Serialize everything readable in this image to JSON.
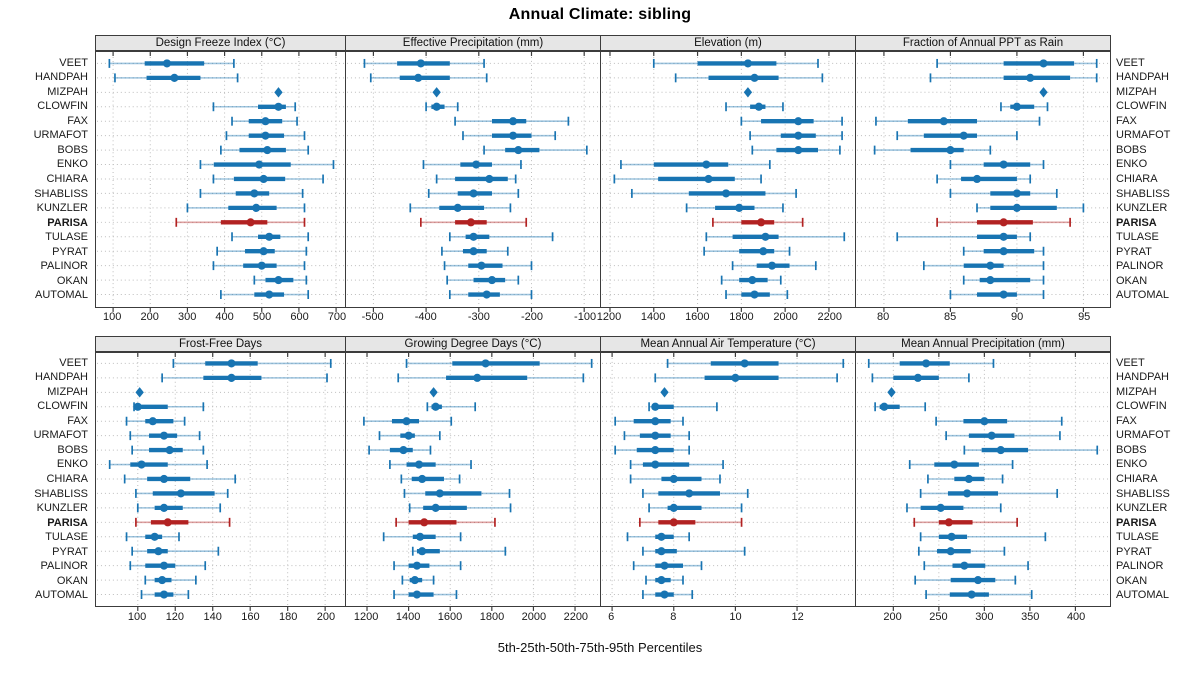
{
  "chart_data": {
    "type": "dotplot-percentile-errorbars",
    "title": "Annual Climate: sibling",
    "caption": "5th-25th-50th-75th-95th Percentiles",
    "legend_position": "none",
    "grid": "dotted",
    "sites": [
      "VEET",
      "HANDPAH",
      "MIZPAH",
      "CLOWFIN",
      "FAX",
      "URMAFOT",
      "BOBS",
      "ENKO",
      "CHIARA",
      "SHABLISS",
      "KUNZLER",
      "PARISA",
      "TULASE",
      "PYRAT",
      "PALINOR",
      "OKAN",
      "AUTOMAL"
    ],
    "highlight_site": "PARISA",
    "single_value_site": "MIZPAH",
    "percentile_order": [
      "p5",
      "p25",
      "p50",
      "p75",
      "p95"
    ],
    "colors": {
      "series_blue": "#1874B2",
      "highlight_red": "#B22222",
      "grid_gray": "#BDBDBD",
      "strip_bg": "#E6E6E6",
      "panel_border": "#3C3C3C",
      "text": "#1A1A1A"
    },
    "panels": [
      {
        "id": "design-freeze-index",
        "title": "Design Freeze Index (°C)",
        "row": 0,
        "col": 0,
        "xlim": [
          54,
          724
        ],
        "ticks": [
          100,
          200,
          300,
          400,
          500,
          600,
          700
        ],
        "values": {
          "VEET": [
            90,
            185,
            245,
            345,
            425
          ],
          "HANDPAH": [
            105,
            190,
            265,
            335,
            435
          ],
          "MIZPAH": [
            545
          ],
          "CLOWFIN": [
            370,
            490,
            545,
            565,
            590
          ],
          "FAX": [
            420,
            465,
            510,
            555,
            595
          ],
          "URMAFOT": [
            405,
            465,
            510,
            560,
            615
          ],
          "BOBS": [
            390,
            440,
            515,
            565,
            625
          ],
          "ENKO": [
            335,
            371,
            493,
            578,
            693
          ],
          "CHIARA": [
            370,
            425,
            505,
            563,
            665
          ],
          "SHABLISS": [
            335,
            430,
            480,
            520,
            610
          ],
          "KUNZLER": [
            300,
            410,
            485,
            540,
            615
          ],
          "PARISA": [
            270,
            390,
            470,
            515,
            615
          ],
          "TULASE": [
            420,
            490,
            520,
            550,
            625
          ],
          "PYRAT": [
            380,
            455,
            505,
            535,
            620
          ],
          "PALINOR": [
            370,
            450,
            500,
            540,
            615
          ],
          "OKAN": [
            480,
            510,
            545,
            585,
            620
          ],
          "AUTOMAL": [
            390,
            480,
            520,
            560,
            625
          ]
        }
      },
      {
        "id": "effective-precipitation",
        "title": "Effective Precipitation (mm)",
        "row": 0,
        "col": 1,
        "xlim": [
          -552,
          -70
        ],
        "ticks": [
          -500,
          -400,
          -300,
          -200,
          -100
        ],
        "values": {
          "VEET": [
            -517,
            -455,
            -410,
            -355,
            -290
          ],
          "HANDPAH": [
            -505,
            -450,
            -415,
            -355,
            -285
          ],
          "MIZPAH": [
            -380
          ],
          "CLOWFIN": [
            -400,
            -390,
            -380,
            -365,
            -340
          ],
          "FAX": [
            -345,
            -275,
            -235,
            -210,
            -130
          ],
          "URMAFOT": [
            -330,
            -275,
            -235,
            -200,
            -155
          ],
          "BOBS": [
            -290,
            -250,
            -225,
            -185,
            -95
          ],
          "ENKO": [
            -405,
            -335,
            -305,
            -275,
            -220
          ],
          "CHIARA": [
            -380,
            -345,
            -280,
            -245,
            -230
          ],
          "SHABLISS": [
            -395,
            -340,
            -310,
            -275,
            -225
          ],
          "KUNZLER": [
            -430,
            -375,
            -340,
            -290,
            -240
          ],
          "PARISA": [
            -410,
            -345,
            -315,
            -285,
            -210
          ],
          "TULASE": [
            -355,
            -325,
            -310,
            -280,
            -160
          ],
          "PYRAT": [
            -370,
            -330,
            -310,
            -285,
            -245
          ],
          "PALINOR": [
            -365,
            -320,
            -295,
            -255,
            -200
          ],
          "OKAN": [
            -360,
            -310,
            -275,
            -250,
            -225
          ],
          "AUTOMAL": [
            -355,
            -320,
            -285,
            -260,
            -200
          ]
        }
      },
      {
        "id": "elevation",
        "title": "Elevation (m)",
        "row": 0,
        "col": 2,
        "xlim": [
          1159,
          2319
        ],
        "ticks": [
          1200,
          1400,
          1600,
          1800,
          2000,
          2200
        ],
        "values": {
          "VEET": [
            1400,
            1600,
            1830,
            1960,
            2150
          ],
          "HANDPAH": [
            1500,
            1650,
            1860,
            1970,
            2170
          ],
          "MIZPAH": [
            1830
          ],
          "CLOWFIN": [
            1730,
            1840,
            1880,
            1910,
            1990
          ],
          "FAX": [
            1800,
            1890,
            2060,
            2130,
            2260
          ],
          "URMAFOT": [
            1840,
            1980,
            2060,
            2140,
            2260
          ],
          "BOBS": [
            1850,
            1960,
            2060,
            2150,
            2250
          ],
          "ENKO": [
            1250,
            1400,
            1640,
            1740,
            1930
          ],
          "CHIARA": [
            1220,
            1420,
            1650,
            1770,
            1890
          ],
          "SHABLISS": [
            1300,
            1560,
            1730,
            1910,
            2050
          ],
          "KUNZLER": [
            1550,
            1680,
            1790,
            1860,
            1990
          ],
          "PARISA": [
            1670,
            1800,
            1890,
            1950,
            2080
          ],
          "TULASE": [
            1640,
            1760,
            1910,
            1970,
            2270
          ],
          "PYRAT": [
            1630,
            1790,
            1900,
            1950,
            2020
          ],
          "PALINOR": [
            1760,
            1870,
            1940,
            2020,
            2140
          ],
          "OKAN": [
            1710,
            1790,
            1850,
            1920,
            1980
          ],
          "AUTOMAL": [
            1730,
            1800,
            1860,
            1930,
            2010
          ]
        }
      },
      {
        "id": "fraction-ppt-as-rain",
        "title": "Fraction of Annual PPT as Rain",
        "row": 0,
        "col": 3,
        "xlim": [
          77.9,
          97
        ],
        "ticks": [
          80,
          85,
          90,
          95
        ],
        "values": {
          "VEET": [
            84,
            89,
            92,
            94.3,
            96
          ],
          "HANDPAH": [
            83.5,
            89,
            91,
            94,
            96
          ],
          "MIZPAH": [
            92
          ],
          "CLOWFIN": [
            88.8,
            89.5,
            90,
            91.3,
            92.3
          ],
          "FAX": [
            79.4,
            81.8,
            84.5,
            87,
            91.7
          ],
          "URMAFOT": [
            81,
            83,
            86,
            87,
            90
          ],
          "BOBS": [
            79.3,
            82,
            85,
            86,
            88
          ],
          "ENKO": [
            85,
            87.5,
            89,
            91,
            92
          ],
          "CHIARA": [
            84,
            85.8,
            87,
            90,
            91
          ],
          "SHABLISS": [
            85,
            88,
            90,
            91,
            93
          ],
          "KUNZLER": [
            87,
            88,
            90,
            93,
            95
          ],
          "PARISA": [
            84,
            87,
            89,
            91.2,
            94
          ],
          "TULASE": [
            81,
            87,
            89,
            90,
            91
          ],
          "PYRAT": [
            86,
            87.5,
            89,
            91.3,
            92
          ],
          "PALINOR": [
            83,
            86,
            88,
            89,
            92
          ],
          "OKAN": [
            86,
            87.2,
            88,
            91,
            92
          ],
          "AUTOMAL": [
            85,
            87,
            89,
            90,
            92
          ]
        }
      },
      {
        "id": "frost-free-days",
        "title": "Frost-Free Days",
        "row": 1,
        "col": 0,
        "xlim": [
          77.7,
          210.6
        ],
        "ticks": [
          100,
          120,
          140,
          160,
          180,
          200
        ],
        "values": {
          "VEET": [
            119,
            136,
            150,
            164,
            203
          ],
          "HANDPAH": [
            113,
            135,
            150,
            166,
            201
          ],
          "MIZPAH": [
            101
          ],
          "CLOWFIN": [
            98,
            99,
            100,
            116,
            135
          ],
          "FAX": [
            94,
            104,
            108,
            119,
            125
          ],
          "URMAFOT": [
            96,
            106,
            114,
            121,
            133
          ],
          "BOBS": [
            97,
            106,
            117,
            124,
            135
          ],
          "ENKO": [
            85,
            96,
            102,
            116,
            137
          ],
          "CHIARA": [
            93,
            105,
            114,
            128,
            152
          ],
          "SHABLISS": [
            99,
            108,
            123,
            141,
            148
          ],
          "KUNZLER": [
            100,
            109,
            114,
            124,
            144
          ],
          "PARISA": [
            99,
            107,
            116,
            127,
            149
          ],
          "TULASE": [
            94,
            104,
            109,
            113,
            122
          ],
          "PYRAT": [
            97,
            105,
            111,
            116,
            143
          ],
          "PALINOR": [
            96,
            104,
            114,
            120,
            136
          ],
          "OKAN": [
            104,
            109,
            113,
            118,
            131
          ],
          "AUTOMAL": [
            102,
            109,
            114,
            119,
            127
          ]
        }
      },
      {
        "id": "growing-degree-days",
        "title": "Growing Degree Days (°C)",
        "row": 1,
        "col": 1,
        "xlim": [
          1099,
          2320
        ],
        "ticks": [
          1200,
          1400,
          1600,
          1800,
          2000,
          2200
        ],
        "values": {
          "VEET": [
            1390,
            1610,
            1770,
            2030,
            2280
          ],
          "HANDPAH": [
            1350,
            1580,
            1730,
            1970,
            2240
          ],
          "MIZPAH": [
            1520
          ],
          "CLOWFIN": [
            1490,
            1510,
            1530,
            1560,
            1720
          ],
          "FAX": [
            1185,
            1320,
            1390,
            1450,
            1605
          ],
          "URMAFOT": [
            1260,
            1360,
            1400,
            1430,
            1550
          ],
          "BOBS": [
            1210,
            1310,
            1375,
            1420,
            1505
          ],
          "ENKO": [
            1310,
            1390,
            1450,
            1530,
            1700
          ],
          "CHIARA": [
            1365,
            1415,
            1465,
            1570,
            1645
          ],
          "SHABLISS": [
            1380,
            1480,
            1550,
            1750,
            1885
          ],
          "KUNZLER": [
            1405,
            1470,
            1530,
            1680,
            1890
          ],
          "PARISA": [
            1340,
            1400,
            1475,
            1630,
            1815
          ],
          "TULASE": [
            1280,
            1420,
            1455,
            1530,
            1650
          ],
          "PYRAT": [
            1420,
            1440,
            1465,
            1550,
            1865
          ],
          "PALINOR": [
            1330,
            1400,
            1440,
            1500,
            1650
          ],
          "OKAN": [
            1370,
            1405,
            1430,
            1465,
            1520
          ],
          "AUTOMAL": [
            1330,
            1400,
            1440,
            1520,
            1630
          ]
        }
      },
      {
        "id": "mean-annual-air-temperature",
        "title": "Mean Annual Air Temperature (°C)",
        "row": 1,
        "col": 2,
        "xlim": [
          5.64,
          13.88
        ],
        "ticks": [
          6,
          8,
          10,
          12
        ],
        "values": {
          "VEET": [
            7.8,
            9.2,
            10.3,
            11.4,
            13.5
          ],
          "HANDPAH": [
            7.4,
            9.0,
            10.0,
            11.4,
            13.3
          ],
          "MIZPAH": [
            7.7
          ],
          "CLOWFIN": [
            7.2,
            7.3,
            7.4,
            8.0,
            9.4
          ],
          "FAX": [
            6.1,
            6.7,
            7.4,
            7.9,
            8.3
          ],
          "URMAFOT": [
            6.4,
            6.9,
            7.4,
            7.9,
            8.5
          ],
          "BOBS": [
            6.1,
            6.8,
            7.4,
            8.0,
            8.5
          ],
          "ENKO": [
            6.6,
            7.0,
            7.4,
            8.5,
            9.6
          ],
          "CHIARA": [
            6.6,
            7.6,
            8.0,
            8.9,
            9.5
          ],
          "SHABLISS": [
            7.0,
            7.5,
            8.5,
            9.5,
            10.4
          ],
          "KUNZLER": [
            7.2,
            7.8,
            8.0,
            8.9,
            10.2
          ],
          "PARISA": [
            6.9,
            7.5,
            8.0,
            8.7,
            10.2
          ],
          "TULASE": [
            6.5,
            7.4,
            7.6,
            8.0,
            8.5
          ],
          "PYRAT": [
            7.0,
            7.4,
            7.6,
            8.1,
            10.3
          ],
          "PALINOR": [
            6.7,
            7.4,
            7.7,
            8.3,
            8.9
          ],
          "OKAN": [
            7.1,
            7.4,
            7.6,
            7.9,
            8.3
          ],
          "AUTOMAL": [
            7.0,
            7.4,
            7.7,
            8.0,
            8.6
          ]
        }
      },
      {
        "id": "mean-annual-precipitation",
        "title": "Mean Annual Precipitation (mm)",
        "row": 1,
        "col": 3,
        "xlim": [
          159,
          438
        ],
        "ticks": [
          200,
          250,
          300,
          350,
          400
        ],
        "values": {
          "VEET": [
            173,
            207,
            236,
            262,
            310
          ],
          "HANDPAH": [
            177,
            200,
            227,
            250,
            283
          ],
          "MIZPAH": [
            198
          ],
          "CLOWFIN": [
            180,
            185,
            190,
            207,
            235
          ],
          "FAX": [
            247,
            277,
            300,
            325,
            385
          ],
          "URMAFOT": [
            258,
            283,
            308,
            333,
            383
          ],
          "BOBS": [
            278,
            297,
            318,
            348,
            424
          ],
          "ENKO": [
            218,
            245,
            267,
            294,
            331
          ],
          "CHIARA": [
            238,
            267,
            283,
            300,
            320
          ],
          "SHABLISS": [
            230,
            260,
            281,
            315,
            380
          ],
          "KUNZLER": [
            215,
            230,
            252,
            277,
            318
          ],
          "PARISA": [
            223,
            250,
            261,
            287,
            336
          ],
          "TULASE": [
            230,
            250,
            264,
            281,
            367
          ],
          "PYRAT": [
            228,
            248,
            263,
            285,
            322
          ],
          "PALINOR": [
            234,
            265,
            278,
            301,
            348
          ],
          "OKAN": [
            224,
            263,
            293,
            312,
            334
          ],
          "AUTOMAL": [
            236,
            262,
            286,
            305,
            352
          ]
        }
      }
    ]
  }
}
